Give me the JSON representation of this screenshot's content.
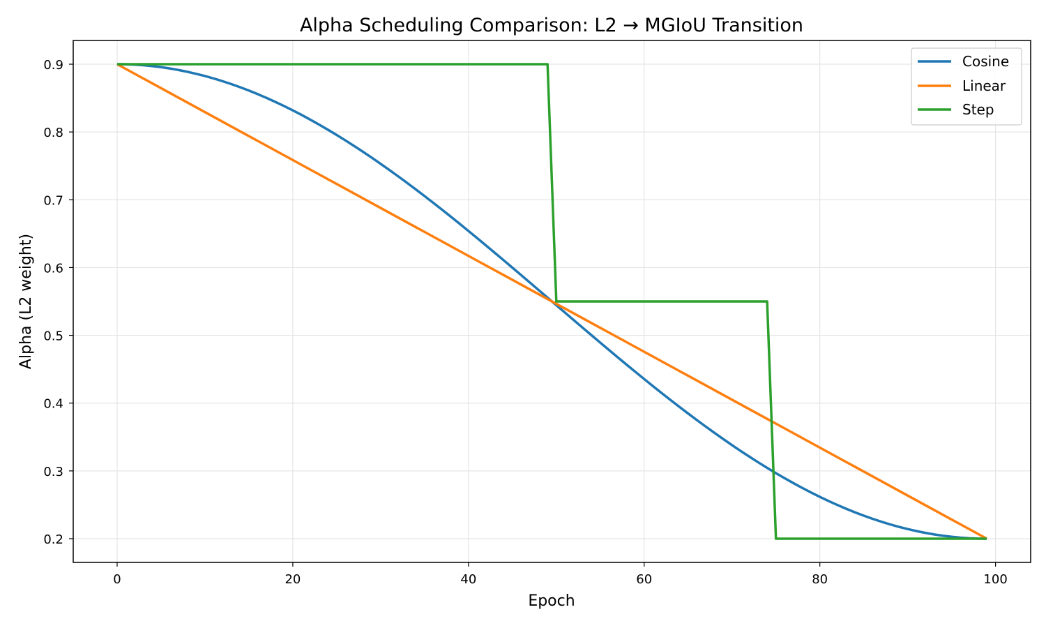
{
  "chart_data": {
    "type": "line",
    "title": "Alpha Scheduling Comparison: L2 → MGIoU Transition",
    "xlabel": "Epoch",
    "ylabel": "Alpha (L2 weight)",
    "xlim": [
      -5,
      104
    ],
    "ylim": [
      0.165,
      0.935
    ],
    "xticks": [
      0,
      20,
      40,
      60,
      80,
      100
    ],
    "yticks": [
      0.2,
      0.3,
      0.4,
      0.5,
      0.6,
      0.7,
      0.8,
      0.9
    ],
    "xtick_labels": [
      "0",
      "20",
      "40",
      "60",
      "80",
      "100"
    ],
    "ytick_labels": [
      "0.2",
      "0.3",
      "0.4",
      "0.5",
      "0.6",
      "0.7",
      "0.8",
      "0.9"
    ],
    "grid": true,
    "legend_position": "top-right",
    "series": [
      {
        "name": "Cosine",
        "color": "#1f77b4",
        "generator": "cosine",
        "epochs": 100,
        "start": 0.9,
        "end": 0.2
      },
      {
        "name": "Linear",
        "color": "#ff7f0e",
        "generator": "linear",
        "epochs": 100,
        "start": 0.9,
        "end": 0.2
      },
      {
        "name": "Step",
        "color": "#2ca02c",
        "x": [
          0,
          49,
          50,
          74,
          75,
          99
        ],
        "y": [
          0.9,
          0.9,
          0.55,
          0.55,
          0.2,
          0.2
        ]
      }
    ]
  }
}
